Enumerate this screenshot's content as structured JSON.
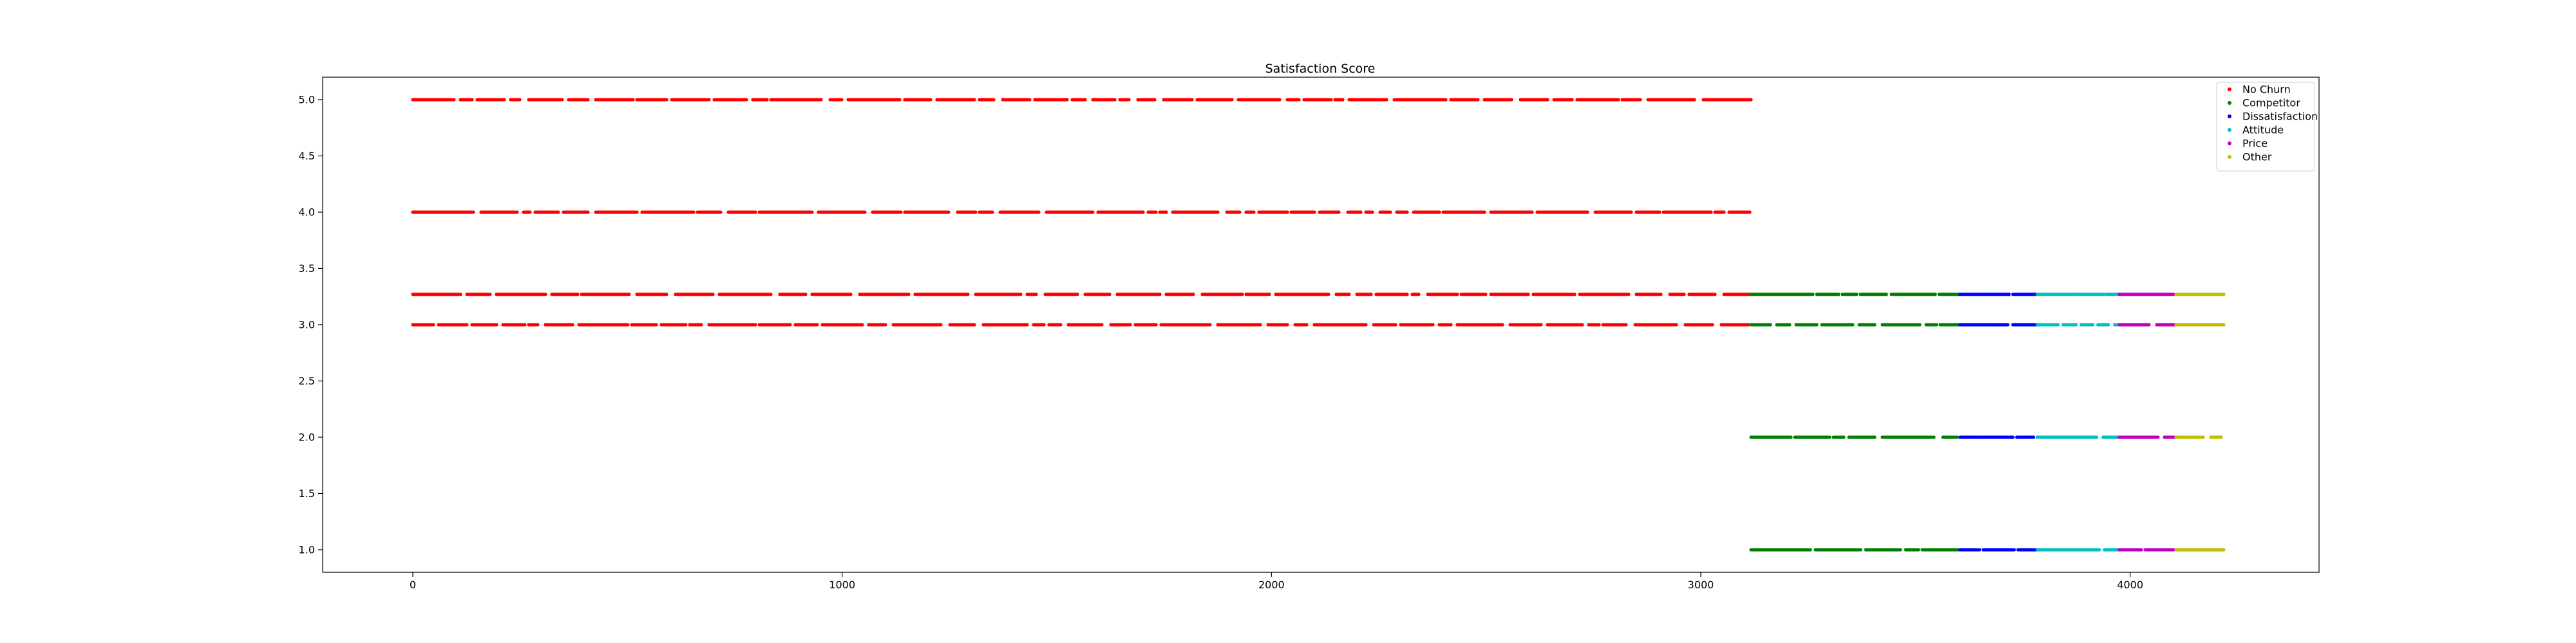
{
  "chart_data": {
    "type": "scatter",
    "title": "Satisfaction Score",
    "xlabel": "",
    "ylabel": "",
    "xlim": [
      -210,
      4440
    ],
    "ylim": [
      0.8,
      5.2
    ],
    "x_ticks": [
      0,
      1000,
      2000,
      3000,
      4000
    ],
    "y_ticks": [
      1.0,
      1.5,
      2.0,
      2.5,
      3.0,
      3.5,
      4.0,
      4.5,
      5.0
    ],
    "grid": false,
    "legend": {
      "placement": "top-right",
      "entries": [
        "No Churn",
        "Competitor",
        "Dissatisfaction",
        "Attitude",
        "Price",
        "Other"
      ]
    },
    "series": [
      {
        "name": "No Churn",
        "color": "#ff0000",
        "x_range": [
          0,
          3117
        ],
        "y_levels": [
          5,
          4,
          3.27,
          3
        ]
      },
      {
        "name": "Competitor",
        "color": "#008000",
        "x_range": [
          3117,
          3604
        ],
        "y_levels": [
          3.27,
          3,
          2,
          1
        ]
      },
      {
        "name": "Dissatisfaction",
        "color": "#0000ff",
        "x_range": [
          3604,
          3784
        ],
        "y_levels": [
          3.27,
          3,
          2,
          1
        ]
      },
      {
        "name": "Attitude",
        "color": "#00bfbf",
        "x_range": [
          3784,
          3975
        ],
        "y_levels": [
          3.27,
          3,
          2,
          1
        ]
      },
      {
        "name": "Price",
        "color": "#bf00bf",
        "x_range": [
          3975,
          4107
        ],
        "y_levels": [
          3.27,
          3,
          2,
          1
        ]
      },
      {
        "name": "Other",
        "color": "#bfbf00",
        "x_range": [
          4107,
          4218
        ],
        "y_levels": [
          3.27,
          3,
          2,
          1
        ]
      }
    ]
  }
}
